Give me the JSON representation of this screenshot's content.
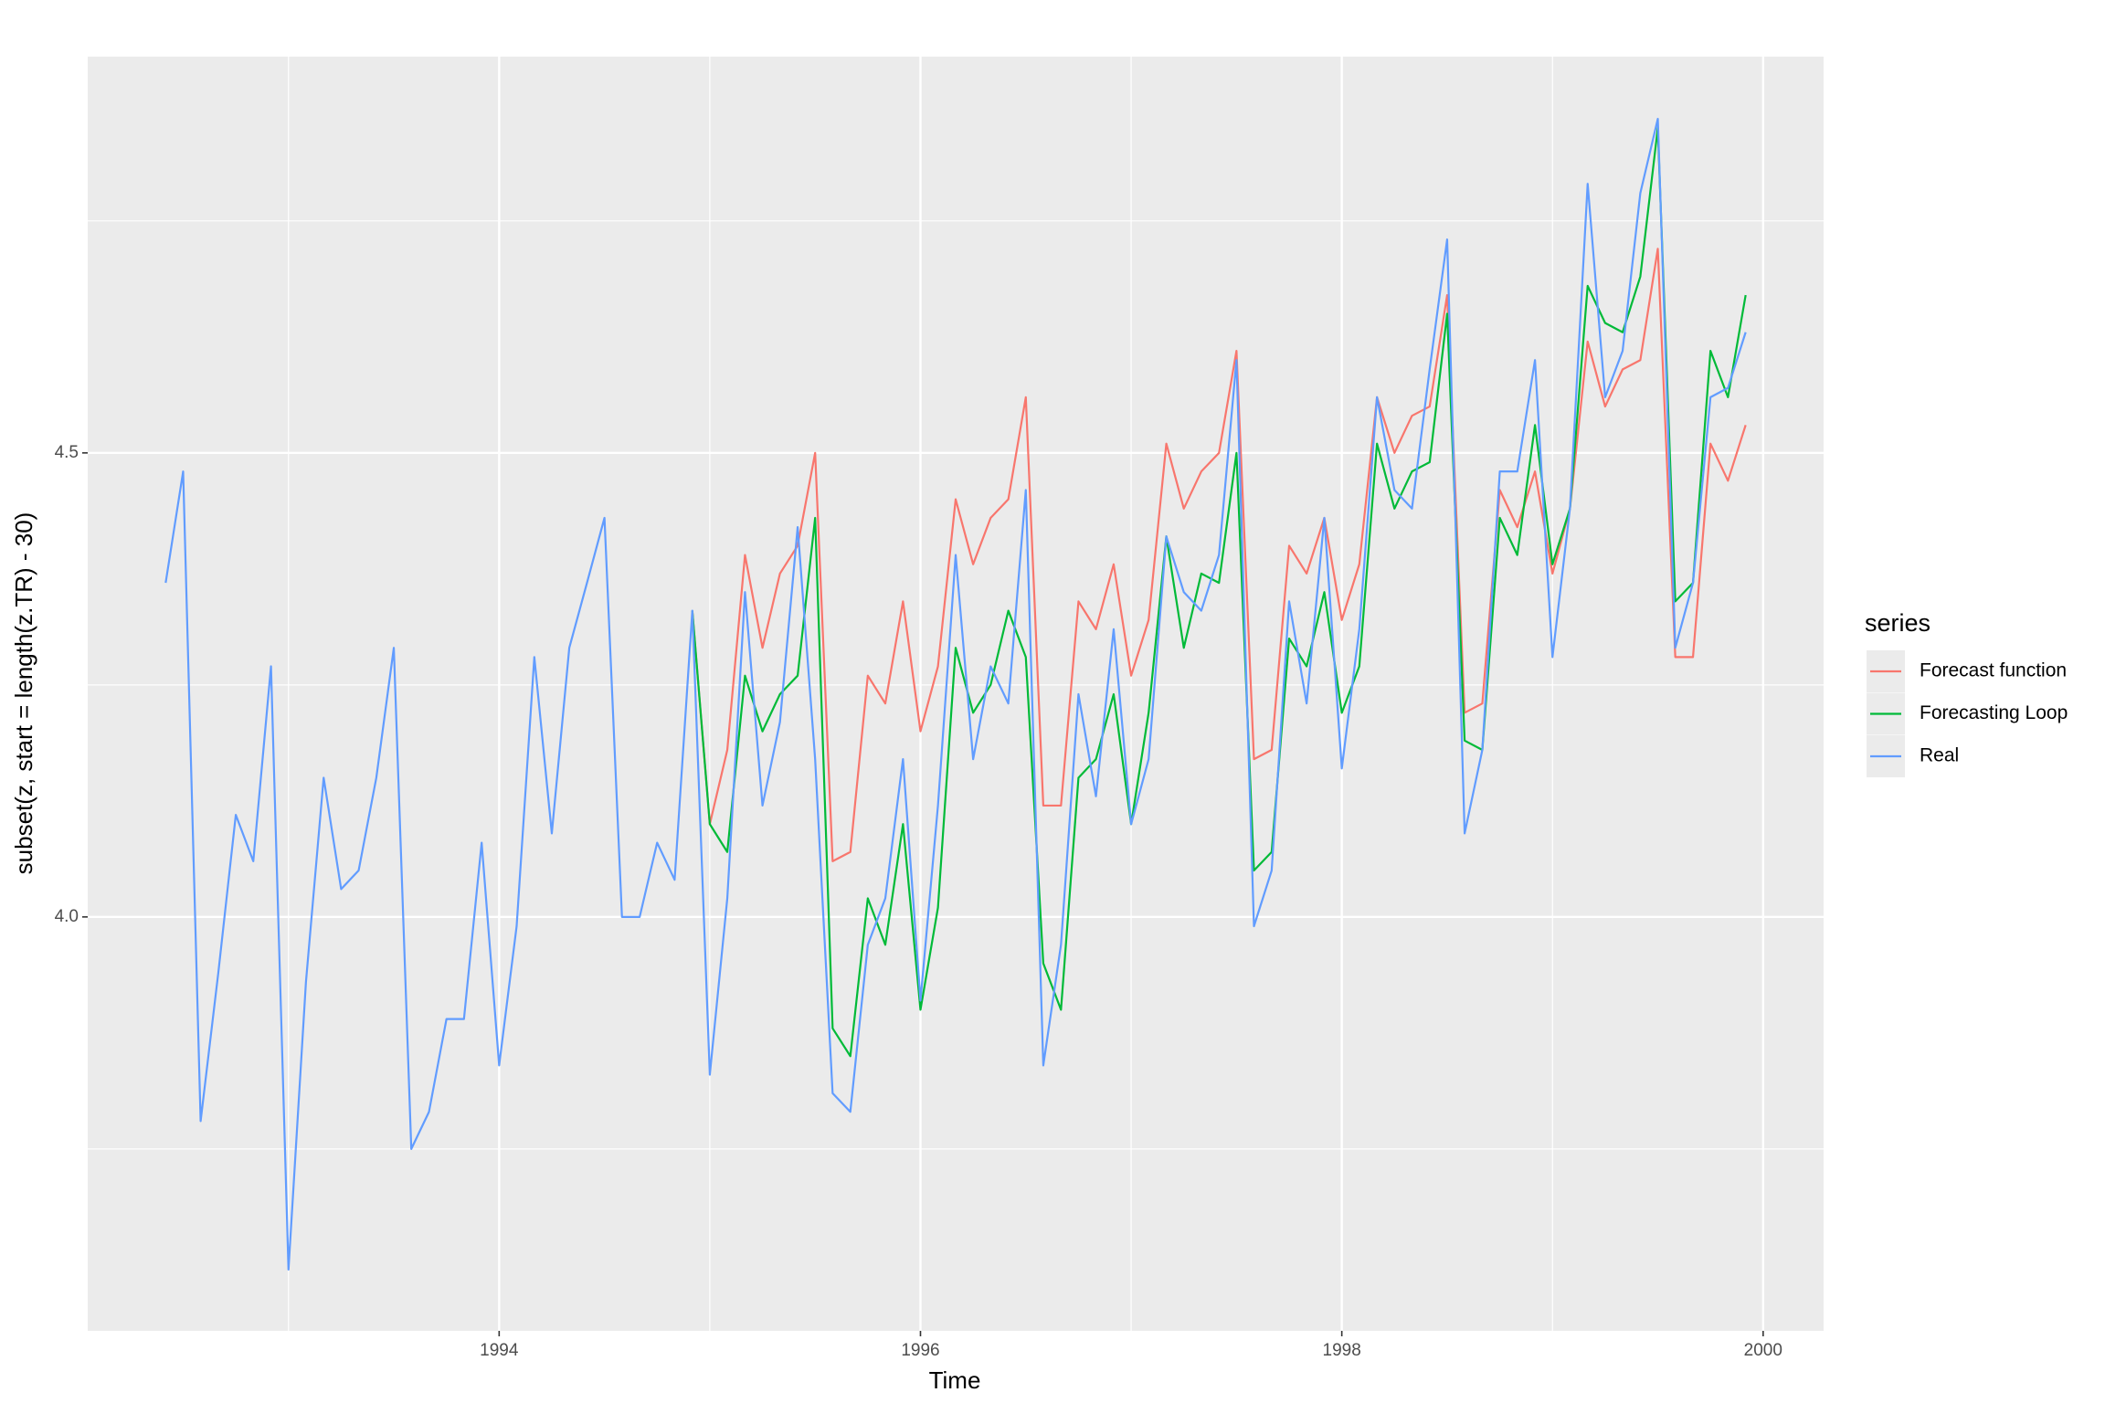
{
  "chart_data": {
    "type": "line",
    "xlabel": "Time",
    "ylabel": "subset(z, start = length(z.TR) - 30)",
    "legend_title": "series",
    "legend": "right",
    "grid": true,
    "xlim": [
      1992.047,
      2000.287
    ],
    "xticks": [
      1994,
      1996,
      1998,
      2000
    ],
    "xminor": [
      1993,
      1995,
      1997,
      1999
    ],
    "ylim": [
      3.554,
      4.927
    ],
    "yticks": [
      {
        "value": 4,
        "label": "4.0"
      },
      {
        "value": 4.5,
        "label": "4.5"
      }
    ],
    "yminor": [
      3.75,
      4.25,
      4.75
    ],
    "series": [
      {
        "name": "Forecast function",
        "color": "#F8766D",
        "x": [
          1994.917,
          1995,
          1995.083,
          1995.167,
          1995.25,
          1995.333,
          1995.417,
          1995.5,
          1995.583,
          1995.667,
          1995.75,
          1995.833,
          1995.917,
          1996,
          1996.083,
          1996.167,
          1996.25,
          1996.333,
          1996.417,
          1996.5,
          1996.583,
          1996.667,
          1996.75,
          1996.833,
          1996.917,
          1997,
          1997.083,
          1997.167,
          1997.25,
          1997.333,
          1997.417,
          1997.5,
          1997.583,
          1997.667,
          1997.75,
          1997.833,
          1997.917,
          1998,
          1998.083,
          1998.167,
          1998.25,
          1998.333,
          1998.417,
          1998.5,
          1998.583,
          1998.667,
          1998.75,
          1998.833,
          1998.917,
          1999,
          1999.083,
          1999.167,
          1999.25,
          1999.333,
          1999.417,
          1999.5,
          1999.583,
          1999.667,
          1999.75,
          1999.833,
          1999.917
        ],
        "values": [
          4.33,
          4.1,
          4.18,
          4.39,
          4.29,
          4.37,
          4.4,
          4.5,
          4.06,
          4.07,
          4.26,
          4.23,
          4.34,
          4.2,
          4.27,
          4.45,
          4.38,
          4.43,
          4.45,
          4.56,
          4.12,
          4.12,
          4.34,
          4.31,
          4.38,
          4.26,
          4.32,
          4.51,
          4.44,
          4.48,
          4.5,
          4.61,
          4.17,
          4.18,
          4.4,
          4.37,
          4.43,
          4.32,
          4.38,
          4.56,
          4.5,
          4.54,
          4.55,
          4.67,
          4.22,
          4.23,
          4.46,
          4.42,
          4.48,
          4.37,
          4.44,
          4.62,
          4.55,
          4.59,
          4.6,
          4.72,
          4.28,
          4.28,
          4.51,
          4.47,
          4.53
        ]
      },
      {
        "name": "Forecasting Loop",
        "color": "#00BA38",
        "x": [
          1994.917,
          1995,
          1995.083,
          1995.167,
          1995.25,
          1995.333,
          1995.417,
          1995.5,
          1995.583,
          1995.667,
          1995.75,
          1995.833,
          1995.917,
          1996,
          1996.083,
          1996.167,
          1996.25,
          1996.333,
          1996.417,
          1996.5,
          1996.583,
          1996.667,
          1996.75,
          1996.833,
          1996.917,
          1997,
          1997.083,
          1997.167,
          1997.25,
          1997.333,
          1997.417,
          1997.5,
          1997.583,
          1997.667,
          1997.75,
          1997.833,
          1997.917,
          1998,
          1998.083,
          1998.167,
          1998.25,
          1998.333,
          1998.417,
          1998.5,
          1998.583,
          1998.667,
          1998.75,
          1998.833,
          1998.917,
          1999,
          1999.083,
          1999.167,
          1999.25,
          1999.333,
          1999.417,
          1999.5,
          1999.583,
          1999.667,
          1999.75,
          1999.833,
          1999.917
        ],
        "values": [
          4.33,
          4.1,
          4.07,
          4.26,
          4.2,
          4.24,
          4.26,
          4.43,
          3.88,
          3.85,
          4.02,
          3.97,
          4.1,
          3.9,
          4.01,
          4.29,
          4.22,
          4.25,
          4.33,
          4.28,
          3.95,
          3.9,
          4.15,
          4.17,
          4.24,
          4.1,
          4.22,
          4.41,
          4.29,
          4.37,
          4.36,
          4.5,
          4.05,
          4.07,
          4.3,
          4.27,
          4.35,
          4.22,
          4.27,
          4.51,
          4.44,
          4.48,
          4.49,
          4.65,
          4.19,
          4.18,
          4.43,
          4.39,
          4.53,
          4.38,
          4.44,
          4.68,
          4.64,
          4.63,
          4.69,
          4.85,
          4.34,
          4.36,
          4.61,
          4.56,
          4.67
        ]
      },
      {
        "name": "Real",
        "color": "#619CFF",
        "x": [
          1992.417,
          1992.5,
          1992.583,
          1992.667,
          1992.75,
          1992.833,
          1992.917,
          1993,
          1993.083,
          1993.167,
          1993.25,
          1993.333,
          1993.417,
          1993.5,
          1993.583,
          1993.667,
          1993.75,
          1993.833,
          1993.917,
          1994,
          1994.083,
          1994.167,
          1994.25,
          1994.333,
          1994.417,
          1994.5,
          1994.583,
          1994.667,
          1994.75,
          1994.833,
          1994.917,
          1995,
          1995.083,
          1995.167,
          1995.25,
          1995.333,
          1995.417,
          1995.5,
          1995.583,
          1995.667,
          1995.75,
          1995.833,
          1995.917,
          1996,
          1996.083,
          1996.167,
          1996.25,
          1996.333,
          1996.417,
          1996.5,
          1996.583,
          1996.667,
          1996.75,
          1996.833,
          1996.917,
          1997,
          1997.083,
          1997.167,
          1997.25,
          1997.333,
          1997.417,
          1997.5,
          1997.583,
          1997.667,
          1997.75,
          1997.833,
          1997.917,
          1998,
          1998.083,
          1998.167,
          1998.25,
          1998.333,
          1998.417,
          1998.5,
          1998.583,
          1998.667,
          1998.75,
          1998.833,
          1998.917,
          1999,
          1999.083,
          1999.167,
          1999.25,
          1999.333,
          1999.417,
          1999.5,
          1999.583,
          1999.667,
          1999.75,
          1999.833,
          1999.917
        ],
        "values": [
          4.36,
          4.48,
          3.78,
          3.94,
          4.11,
          4.06,
          4.27,
          3.62,
          3.93,
          4.15,
          4.03,
          4.05,
          4.15,
          4.29,
          3.75,
          3.79,
          3.89,
          3.89,
          4.08,
          3.84,
          3.99,
          4.28,
          4.09,
          4.29,
          4.36,
          4.43,
          4.0,
          4.0,
          4.08,
          4.04,
          4.33,
          3.83,
          4.02,
          4.35,
          4.12,
          4.21,
          4.42,
          4.17,
          3.81,
          3.79,
          3.97,
          4.02,
          4.17,
          3.91,
          4.12,
          4.39,
          4.17,
          4.27,
          4.23,
          4.46,
          3.84,
          3.97,
          4.24,
          4.13,
          4.31,
          4.1,
          4.17,
          4.41,
          4.35,
          4.33,
          4.39,
          4.6,
          3.99,
          4.05,
          4.34,
          4.23,
          4.43,
          4.16,
          4.31,
          4.56,
          4.46,
          4.44,
          4.59,
          4.73,
          4.09,
          4.18,
          4.48,
          4.48,
          4.6,
          4.28,
          4.44,
          4.79,
          4.56,
          4.61,
          4.78,
          4.86,
          4.29,
          4.36,
          4.56,
          4.57,
          4.63
        ]
      }
    ]
  }
}
